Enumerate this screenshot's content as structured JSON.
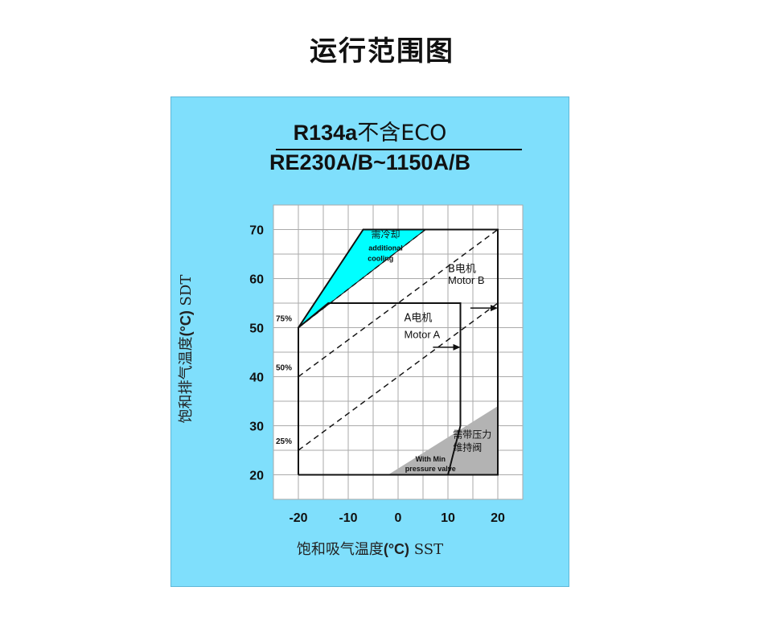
{
  "page": {
    "title": "运行范围图"
  },
  "chart_data": {
    "type": "area",
    "title_line1_main": "R134a",
    "title_line1_cn": "不含ECO",
    "title_line2": "RE230A/B~1150A/B",
    "xlabel_text": "饱和吸气温度",
    "xlabel_unit": "(°C)",
    "xlabel_code": "SST",
    "ylabel_text": "饱和排气温度",
    "ylabel_unit": "(°C)",
    "ylabel_code": "SDT",
    "xlim": [
      -25,
      25
    ],
    "ylim": [
      15,
      75
    ],
    "xticks": [
      -20,
      -10,
      0,
      10,
      20
    ],
    "yticks": [
      20,
      30,
      40,
      50,
      60,
      70
    ],
    "grid": true,
    "colors": {
      "background": "#7fdffc",
      "plot": "#ffffff",
      "grid": "#aaaaaa",
      "cooling": "#00ffff",
      "min_pressure": "#b3b3b3",
      "outline": "#111111"
    },
    "envelope_b": [
      [
        -20,
        20
      ],
      [
        -20,
        50
      ],
      [
        -7,
        70
      ],
      [
        20,
        70
      ],
      [
        20,
        20
      ]
    ],
    "envelope_a": [
      [
        -20,
        20
      ],
      [
        -20,
        50
      ],
      [
        -14,
        55
      ],
      [
        12.5,
        55
      ],
      [
        12.5,
        30
      ],
      [
        10,
        20
      ]
    ],
    "cooling_region": {
      "points": [
        [
          -20,
          50
        ],
        [
          -7,
          70
        ],
        [
          5.5,
          70
        ]
      ],
      "labels": [
        "需冷却",
        "additional",
        "cooling"
      ]
    },
    "min_pressure_region": {
      "points": [
        [
          -2,
          20
        ],
        [
          20,
          20
        ],
        [
          20,
          34
        ]
      ],
      "labels": [
        "需带压力",
        "维持阀",
        "With Min",
        "pressure valve"
      ]
    },
    "dashed_lines": [
      {
        "label": "75%",
        "points": [
          [
            -20,
            50
          ],
          [
            5.5,
            70
          ]
        ]
      },
      {
        "label": "50%",
        "points": [
          [
            -20,
            40
          ],
          [
            20,
            70
          ]
        ]
      },
      {
        "label": "25%",
        "points": [
          [
            -20,
            25
          ],
          [
            20,
            55
          ]
        ]
      }
    ],
    "motor_labels": [
      {
        "name": "B电机",
        "name_en": "Motor B",
        "value": 20,
        "at": [
          20,
          54
        ]
      },
      {
        "name": "A电机",
        "name_en": "Motor A",
        "value": 12.5,
        "at": [
          12.5,
          46
        ]
      }
    ]
  }
}
